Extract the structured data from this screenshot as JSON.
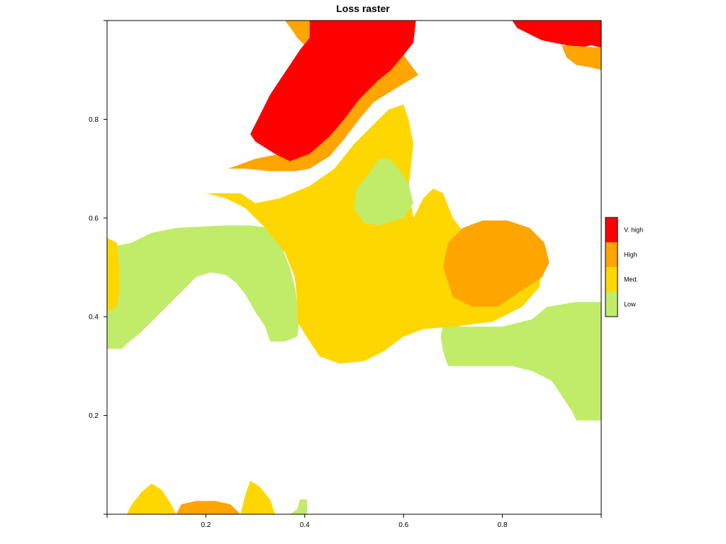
{
  "chart_data": {
    "type": "heatmap",
    "title": "Loss raster",
    "xlabel": "",
    "ylabel": "",
    "xlim": [
      0,
      1
    ],
    "ylim": [
      0,
      1
    ],
    "x_ticks": [
      {
        "value": 0,
        "label": ""
      },
      {
        "value": 0.2,
        "label": "0.2"
      },
      {
        "value": 0.4,
        "label": "0.4"
      },
      {
        "value": 0.6,
        "label": "0.6"
      },
      {
        "value": 0.8,
        "label": "0.8"
      },
      {
        "value": 1,
        "label": ""
      }
    ],
    "y_ticks": [
      {
        "value": 0,
        "label": ""
      },
      {
        "value": 0.2,
        "label": "0.2"
      },
      {
        "value": 0.4,
        "label": "0.4"
      },
      {
        "value": 0.6,
        "label": "0.6"
      },
      {
        "value": 0.8,
        "label": "0.8"
      },
      {
        "value": 1,
        "label": ""
      }
    ],
    "grid": false,
    "legend_position": "right",
    "classes": [
      {
        "label": "V. high",
        "color": "#FF0000"
      },
      {
        "label": "High",
        "color": "#FFA500"
      },
      {
        "label": "Med.",
        "color": "#FFD700"
      },
      {
        "label": "Low",
        "color": "#C1EC6A"
      }
    ],
    "regions": [
      {
        "class": "Low",
        "points": [
          [
            0,
            0.335
          ],
          [
            0.03,
            0.335
          ],
          [
            0.04,
            0.345
          ],
          [
            0.07,
            0.37
          ],
          [
            0.09,
            0.39
          ],
          [
            0.12,
            0.42
          ],
          [
            0.15,
            0.45
          ],
          [
            0.18,
            0.48
          ],
          [
            0.21,
            0.49
          ],
          [
            0.24,
            0.485
          ],
          [
            0.26,
            0.47
          ],
          [
            0.28,
            0.445
          ],
          [
            0.3,
            0.41
          ],
          [
            0.32,
            0.38
          ],
          [
            0.33,
            0.35
          ],
          [
            0.36,
            0.35
          ],
          [
            0.385,
            0.36
          ],
          [
            0.39,
            0.4
          ],
          [
            0.38,
            0.46
          ],
          [
            0.37,
            0.5
          ],
          [
            0.35,
            0.55
          ],
          [
            0.33,
            0.58
          ],
          [
            0.29,
            0.585
          ],
          [
            0.24,
            0.585
          ],
          [
            0.14,
            0.58
          ],
          [
            0.09,
            0.57
          ],
          [
            0.05,
            0.55
          ],
          [
            0,
            0.54
          ]
        ]
      },
      {
        "class": "Med.",
        "points": [
          [
            0,
            0.41
          ],
          [
            0.02,
            0.42
          ],
          [
            0.025,
            0.45
          ],
          [
            0.025,
            0.5
          ],
          [
            0.02,
            0.55
          ],
          [
            0,
            0.56
          ]
        ]
      },
      {
        "class": "Low",
        "points": [
          [
            0.68,
            0.385
          ],
          [
            0.72,
            0.38
          ],
          [
            0.8,
            0.38
          ],
          [
            0.86,
            0.395
          ],
          [
            0.89,
            0.42
          ],
          [
            0.95,
            0.43
          ],
          [
            1,
            0.43
          ],
          [
            1,
            0.19
          ],
          [
            0.95,
            0.19
          ],
          [
            0.94,
            0.21
          ],
          [
            0.92,
            0.24
          ],
          [
            0.9,
            0.27
          ],
          [
            0.88,
            0.28
          ],
          [
            0.86,
            0.29
          ],
          [
            0.82,
            0.3
          ],
          [
            0.76,
            0.3
          ],
          [
            0.69,
            0.3
          ],
          [
            0.68,
            0.33
          ],
          [
            0.675,
            0.36
          ]
        ]
      },
      {
        "class": "Med.",
        "points": [
          [
            0.2,
            0.65
          ],
          [
            0.24,
            0.64
          ],
          [
            0.28,
            0.62
          ],
          [
            0.32,
            0.58
          ],
          [
            0.36,
            0.53
          ],
          [
            0.38,
            0.48
          ],
          [
            0.385,
            0.43
          ],
          [
            0.385,
            0.39
          ],
          [
            0.41,
            0.35
          ],
          [
            0.43,
            0.32
          ],
          [
            0.47,
            0.305
          ],
          [
            0.52,
            0.31
          ],
          [
            0.56,
            0.33
          ],
          [
            0.6,
            0.36
          ],
          [
            0.64,
            0.375
          ],
          [
            0.7,
            0.38
          ],
          [
            0.78,
            0.39
          ],
          [
            0.84,
            0.42
          ],
          [
            0.875,
            0.46
          ],
          [
            0.88,
            0.5
          ],
          [
            0.84,
            0.5
          ],
          [
            0.79,
            0.52
          ],
          [
            0.73,
            0.56
          ],
          [
            0.7,
            0.6
          ],
          [
            0.68,
            0.65
          ],
          [
            0.66,
            0.66
          ],
          [
            0.64,
            0.64
          ],
          [
            0.62,
            0.6
          ],
          [
            0.61,
            0.66
          ],
          [
            0.62,
            0.75
          ],
          [
            0.61,
            0.8
          ],
          [
            0.6,
            0.83
          ],
          [
            0.57,
            0.82
          ],
          [
            0.54,
            0.79
          ],
          [
            0.5,
            0.75
          ],
          [
            0.46,
            0.7
          ],
          [
            0.41,
            0.665
          ],
          [
            0.35,
            0.64
          ],
          [
            0.3,
            0.63
          ],
          [
            0.27,
            0.65
          ]
        ]
      },
      {
        "class": "Low",
        "points": [
          [
            0.57,
            0.72
          ],
          [
            0.59,
            0.7
          ],
          [
            0.61,
            0.67
          ],
          [
            0.62,
            0.63
          ],
          [
            0.6,
            0.6
          ],
          [
            0.55,
            0.585
          ],
          [
            0.52,
            0.59
          ],
          [
            0.5,
            0.62
          ],
          [
            0.505,
            0.66
          ],
          [
            0.53,
            0.69
          ],
          [
            0.55,
            0.72
          ]
        ]
      },
      {
        "class": "High",
        "points": [
          [
            0.68,
            0.5
          ],
          [
            0.7,
            0.44
          ],
          [
            0.74,
            0.42
          ],
          [
            0.79,
            0.42
          ],
          [
            0.835,
            0.45
          ],
          [
            0.88,
            0.48
          ],
          [
            0.895,
            0.51
          ],
          [
            0.885,
            0.55
          ],
          [
            0.855,
            0.58
          ],
          [
            0.81,
            0.595
          ],
          [
            0.76,
            0.595
          ],
          [
            0.72,
            0.58
          ],
          [
            0.69,
            0.55
          ]
        ]
      },
      {
        "class": "High",
        "points": [
          [
            0.245,
            0.7
          ],
          [
            0.28,
            0.7
          ],
          [
            0.33,
            0.695
          ],
          [
            0.38,
            0.695
          ],
          [
            0.41,
            0.7
          ],
          [
            0.45,
            0.725
          ],
          [
            0.48,
            0.76
          ],
          [
            0.51,
            0.8
          ],
          [
            0.54,
            0.835
          ],
          [
            0.58,
            0.86
          ],
          [
            0.63,
            0.89
          ],
          [
            0.6,
            0.93
          ],
          [
            0.58,
            0.95
          ],
          [
            0.55,
            0.93
          ],
          [
            0.52,
            0.9
          ],
          [
            0.49,
            0.85
          ],
          [
            0.46,
            0.81
          ],
          [
            0.44,
            0.78
          ],
          [
            0.4,
            0.745
          ],
          [
            0.35,
            0.73
          ],
          [
            0.3,
            0.72
          ]
        ]
      },
      {
        "class": "High",
        "points": [
          [
            0.36,
            1
          ],
          [
            0.41,
            1
          ],
          [
            0.415,
            0.965
          ],
          [
            0.4,
            0.95
          ],
          [
            0.385,
            0.965
          ],
          [
            0.375,
            0.98
          ]
        ]
      },
      {
        "class": "V. high",
        "points": [
          [
            0.41,
            1
          ],
          [
            0.625,
            1
          ],
          [
            0.62,
            0.955
          ],
          [
            0.6,
            0.93
          ],
          [
            0.575,
            0.9
          ],
          [
            0.55,
            0.88
          ],
          [
            0.51,
            0.84
          ],
          [
            0.48,
            0.8
          ],
          [
            0.45,
            0.765
          ],
          [
            0.41,
            0.73
          ],
          [
            0.37,
            0.715
          ],
          [
            0.34,
            0.73
          ],
          [
            0.3,
            0.755
          ],
          [
            0.29,
            0.77
          ],
          [
            0.31,
            0.81
          ],
          [
            0.33,
            0.85
          ],
          [
            0.35,
            0.88
          ],
          [
            0.37,
            0.91
          ],
          [
            0.39,
            0.94
          ],
          [
            0.41,
            0.965
          ]
        ]
      },
      {
        "class": "V. high",
        "points": [
          [
            0.82,
            1
          ],
          [
            1,
            1
          ],
          [
            1,
            0.945
          ],
          [
            0.98,
            0.95
          ],
          [
            0.96,
            0.945
          ],
          [
            0.93,
            0.95
          ],
          [
            0.88,
            0.96
          ],
          [
            0.85,
            0.975
          ],
          [
            0.83,
            0.985
          ]
        ]
      },
      {
        "class": "High",
        "points": [
          [
            0.92,
            0.95
          ],
          [
            1,
            0.945
          ],
          [
            1,
            0.9
          ],
          [
            0.98,
            0.905
          ],
          [
            0.95,
            0.91
          ],
          [
            0.93,
            0.925
          ]
        ]
      },
      {
        "class": "Med.",
        "points": [
          [
            0.04,
            0
          ],
          [
            0.14,
            0
          ],
          [
            0.13,
            0.02
          ],
          [
            0.11,
            0.05
          ],
          [
            0.09,
            0.062
          ],
          [
            0.07,
            0.045
          ],
          [
            0.05,
            0.02
          ]
        ]
      },
      {
        "class": "High",
        "points": [
          [
            0.14,
            0
          ],
          [
            0.27,
            0
          ],
          [
            0.25,
            0.02
          ],
          [
            0.22,
            0.027
          ],
          [
            0.18,
            0.027
          ],
          [
            0.15,
            0.02
          ]
        ]
      },
      {
        "class": "Med.",
        "points": [
          [
            0.27,
            0
          ],
          [
            0.34,
            0
          ],
          [
            0.33,
            0.03
          ],
          [
            0.31,
            0.055
          ],
          [
            0.29,
            0.068
          ],
          [
            0.28,
            0.04
          ]
        ]
      },
      {
        "class": "Low",
        "points": [
          [
            0.37,
            0
          ],
          [
            0.405,
            0
          ],
          [
            0.405,
            0.03
          ],
          [
            0.39,
            0.03
          ],
          [
            0.385,
            0.01
          ]
        ]
      }
    ]
  }
}
